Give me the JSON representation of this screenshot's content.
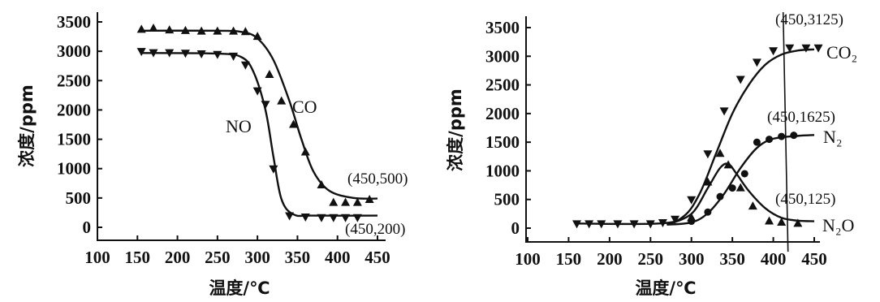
{
  "chart_data": [
    {
      "type": "scatter",
      "xlabel": "温度/℃",
      "ylabel": "浓度/ppm",
      "xlim": [
        100,
        450
      ],
      "ylim": [
        0,
        3500
      ],
      "x_ticks": [
        "100",
        "150",
        "200",
        "250",
        "300",
        "350",
        "400",
        "450"
      ],
      "y_ticks": [
        "0",
        "500",
        "1000",
        "1500",
        "2000",
        "2500",
        "3000",
        "3500"
      ],
      "series": [
        {
          "name": "CO",
          "marker": "triangle-up",
          "points": [
            [
              155,
              3370
            ],
            [
              170,
              3390
            ],
            [
              190,
              3360
            ],
            [
              210,
              3350
            ],
            [
              230,
              3340
            ],
            [
              250,
              3340
            ],
            [
              270,
              3340
            ],
            [
              285,
              3330
            ],
            [
              300,
              3250
            ],
            [
              315,
              2600
            ],
            [
              330,
              2150
            ],
            [
              345,
              1750
            ],
            [
              360,
              1280
            ],
            [
              380,
              720
            ],
            [
              395,
              420
            ],
            [
              410,
              420
            ],
            [
              425,
              420
            ],
            [
              440,
              470
            ]
          ],
          "curve": [
            [
              155,
              3350
            ],
            [
              250,
              3350
            ],
            [
              280,
              3330
            ],
            [
              300,
              3220
            ],
            [
              320,
              2850
            ],
            [
              340,
              2150
            ],
            [
              355,
              1500
            ],
            [
              370,
              950
            ],
            [
              390,
              620
            ],
            [
              420,
              500
            ],
            [
              450,
              490
            ]
          ]
        },
        {
          "name": "NO",
          "marker": "triangle-down",
          "points": [
            [
              155,
              3000
            ],
            [
              170,
              2980
            ],
            [
              190,
              2980
            ],
            [
              210,
              2970
            ],
            [
              230,
              2960
            ],
            [
              250,
              2950
            ],
            [
              270,
              2920
            ],
            [
              285,
              2770
            ],
            [
              300,
              2330
            ],
            [
              310,
              2100
            ],
            [
              320,
              1000
            ],
            [
              340,
              200
            ],
            [
              360,
              180
            ],
            [
              380,
              170
            ],
            [
              395,
              170
            ],
            [
              410,
              170
            ],
            [
              425,
              170
            ]
          ],
          "curve": [
            [
              155,
              2970
            ],
            [
              250,
              2960
            ],
            [
              280,
              2900
            ],
            [
              295,
              2650
            ],
            [
              310,
              2000
            ],
            [
              320,
              1200
            ],
            [
              330,
              480
            ],
            [
              345,
              220
            ],
            [
              370,
              200
            ],
            [
              450,
              200
            ]
          ]
        }
      ],
      "annotations": [
        "(450,500)",
        "(450,200)"
      ]
    },
    {
      "type": "scatter",
      "xlabel": "温度/℃",
      "ylabel": "浓度/ppm",
      "xlim": [
        100,
        450
      ],
      "ylim": [
        0,
        3500
      ],
      "x_ticks": [
        "100",
        "150",
        "200",
        "250",
        "300",
        "350",
        "400",
        "450"
      ],
      "y_ticks": [
        "0",
        "500",
        "1000",
        "1500",
        "2000",
        "2500",
        "3000",
        "3500"
      ],
      "series": [
        {
          "name": "CO2",
          "label": "CO₂",
          "marker": "triangle-down",
          "points": [
            [
              160,
              80
            ],
            [
              175,
              80
            ],
            [
              190,
              80
            ],
            [
              210,
              80
            ],
            [
              230,
              80
            ],
            [
              250,
              80
            ],
            [
              265,
              100
            ],
            [
              280,
              160
            ],
            [
              300,
              500
            ],
            [
              320,
              1300
            ],
            [
              340,
              2050
            ],
            [
              360,
              2600
            ],
            [
              380,
              2900
            ],
            [
              400,
              3100
            ],
            [
              420,
              3150
            ],
            [
              440,
              3150
            ],
            [
              455,
              3150
            ]
          ],
          "curve": [
            [
              160,
              80
            ],
            [
              260,
              80
            ],
            [
              290,
              200
            ],
            [
              310,
              600
            ],
            [
              330,
              1300
            ],
            [
              350,
              2000
            ],
            [
              370,
              2500
            ],
            [
              390,
              2850
            ],
            [
              410,
              3030
            ],
            [
              430,
              3100
            ],
            [
              450,
              3120
            ]
          ]
        },
        {
          "name": "N2",
          "label": "N₂",
          "marker": "circle",
          "points": [
            [
              300,
              120
            ],
            [
              320,
              280
            ],
            [
              335,
              550
            ],
            [
              350,
              700
            ],
            [
              365,
              950
            ],
            [
              380,
              1500
            ],
            [
              395,
              1550
            ],
            [
              410,
              1600
            ],
            [
              425,
              1620
            ]
          ],
          "curve": [
            [
              270,
              60
            ],
            [
              300,
              100
            ],
            [
              320,
              260
            ],
            [
              340,
              600
            ],
            [
              360,
              1050
            ],
            [
              380,
              1400
            ],
            [
              400,
              1560
            ],
            [
              430,
              1610
            ],
            [
              450,
              1625
            ]
          ]
        },
        {
          "name": "N2O",
          "label": "N₂O",
          "marker": "triangle-up",
          "points": [
            [
              300,
              180
            ],
            [
              320,
              800
            ],
            [
              335,
              1300
            ],
            [
              345,
              1100
            ],
            [
              360,
              700
            ],
            [
              375,
              380
            ],
            [
              395,
              120
            ],
            [
              410,
              100
            ],
            [
              430,
              80
            ]
          ],
          "curve": [
            [
              270,
              60
            ],
            [
              300,
              250
            ],
            [
              320,
              700
            ],
            [
              335,
              1050
            ],
            [
              345,
              1120
            ],
            [
              355,
              950
            ],
            [
              370,
              650
            ],
            [
              390,
              350
            ],
            [
              410,
              180
            ],
            [
              430,
              130
            ],
            [
              450,
              120
            ]
          ]
        }
      ],
      "vline_x": 415,
      "annotations": [
        "(450,3125)",
        "(450,1625)",
        "(450,125)"
      ]
    }
  ]
}
